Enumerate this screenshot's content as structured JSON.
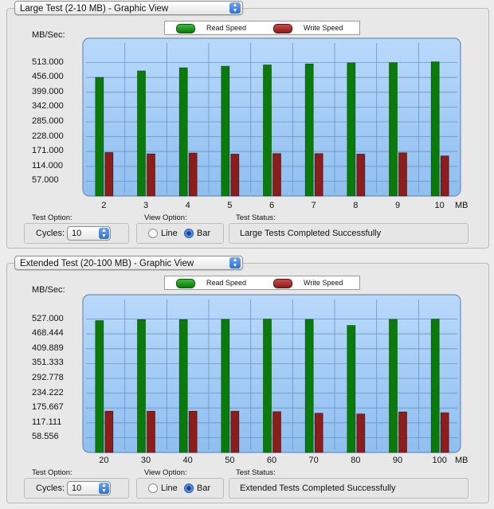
{
  "legend": {
    "read": "Read Speed",
    "write": "Write Speed"
  },
  "colors": {
    "read": "#0a7a0a",
    "write": "#8b1d1d",
    "plot_bg": "#a8cdf5"
  },
  "chart_data": [
    {
      "type": "bar",
      "title": "Large Test (2-10 MB) - Graphic View",
      "ylabel": "MB/Sec:",
      "xunit": "MB",
      "categories": [
        "2",
        "3",
        "4",
        "5",
        "6",
        "7",
        "8",
        "9",
        "10"
      ],
      "yticks": [
        "513.000",
        "456.000",
        "399.000",
        "342.000",
        "285.000",
        "228.000",
        "171.000",
        "114.000",
        "57.000"
      ],
      "ylim": [
        0,
        570
      ],
      "series": [
        {
          "name": "Read Speed",
          "values": [
            456,
            481,
            493,
            499,
            504,
            508,
            512,
            513,
            516
          ]
        },
        {
          "name": "Write Speed",
          "values": [
            167,
            162,
            165,
            161,
            163,
            163,
            161,
            166,
            154
          ]
        }
      ]
    },
    {
      "type": "bar",
      "title": "Extended Test (20-100 MB) - Graphic View",
      "ylabel": "MB/Sec:",
      "xunit": "MB",
      "categories": [
        "20",
        "30",
        "40",
        "50",
        "60",
        "70",
        "80",
        "90",
        "100"
      ],
      "yticks": [
        "527.000",
        "468.444",
        "409.889",
        "351.333",
        "292.778",
        "234.222",
        "175.667",
        "117.111",
        "58.556"
      ],
      "ylim": [
        0,
        585.556
      ],
      "series": [
        {
          "name": "Read Speed",
          "values": [
            521,
            525,
            525,
            526,
            527,
            526,
            502,
            526,
            527
          ]
        },
        {
          "name": "Write Speed",
          "values": [
            163,
            163,
            163,
            163,
            161,
            155,
            152,
            160,
            157
          ]
        }
      ]
    }
  ],
  "panels": [
    {
      "title": "Large Test (2-10 MB) - Graphic View",
      "test_option_label": "Test Option:",
      "cycles_label": "Cycles:",
      "cycles_value": "10",
      "view_option_label": "View Option:",
      "line_label": "Line",
      "bar_label": "Bar",
      "status_label": "Test Status:",
      "status_text": "Large Tests Completed Successfully"
    },
    {
      "title": "Extended Test (20-100 MB) - Graphic View",
      "test_option_label": "Test Option:",
      "cycles_label": "Cycles:",
      "cycles_value": "10",
      "view_option_label": "View Option:",
      "line_label": "Line",
      "bar_label": "Bar",
      "status_label": "Test Status:",
      "status_text": "Extended Tests Completed Successfully"
    }
  ]
}
